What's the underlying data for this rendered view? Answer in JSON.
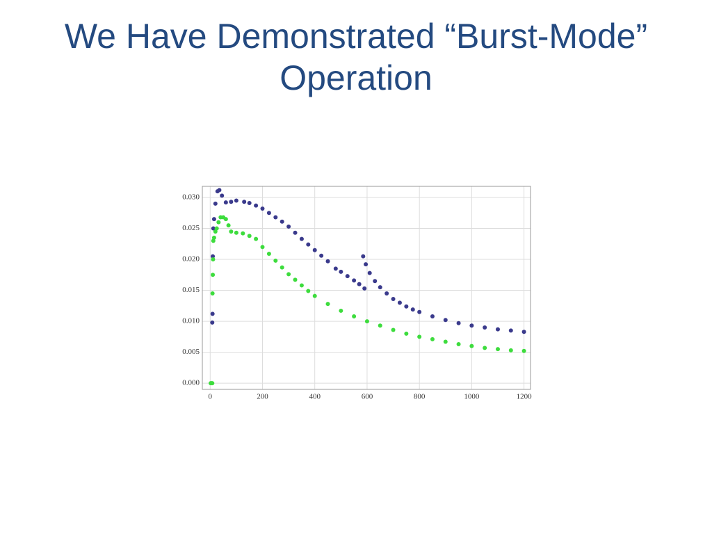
{
  "title": "We Have Demonstrated “Burst-Mode” Operation",
  "chart_data": {
    "type": "scatter",
    "xlim": [
      -30,
      1225
    ],
    "ylim": [
      -0.001,
      0.0318
    ],
    "xticks": [
      0,
      200,
      400,
      600,
      800,
      1000,
      1200
    ],
    "yticks": [
      {
        "value": 0,
        "label": "0.000"
      },
      0.005,
      {
        "value": 0.01,
        "label": "0.010"
      },
      0.015,
      {
        "value": 0.02,
        "label": "0.020"
      },
      0.025,
      {
        "value": 0.03,
        "label": "0.030"
      }
    ],
    "grid": true,
    "series": [
      {
        "color": "#3a3a8c",
        "x": [
          8,
          9,
          10,
          12,
          15,
          20,
          28,
          35,
          45,
          60,
          80,
          100,
          130,
          150,
          175,
          200,
          225,
          250,
          275,
          300,
          325,
          350,
          375,
          400,
          425,
          450,
          480,
          500,
          525,
          550,
          570,
          590,
          585,
          595,
          610,
          630,
          650,
          675,
          700,
          725,
          750,
          775,
          800,
          850,
          900,
          950,
          1000,
          1050,
          1100,
          1150,
          1200
        ],
        "values": [
          0.0098,
          0.0112,
          0.0205,
          0.025,
          0.0265,
          0.029,
          0.031,
          0.0312,
          0.0303,
          0.0292,
          0.0293,
          0.0295,
          0.0293,
          0.0291,
          0.0287,
          0.0282,
          0.0275,
          0.0268,
          0.0261,
          0.0253,
          0.0243,
          0.0233,
          0.0224,
          0.0215,
          0.0206,
          0.0197,
          0.0185,
          0.018,
          0.0173,
          0.0166,
          0.016,
          0.0153,
          0.0205,
          0.0192,
          0.0178,
          0.0165,
          0.0155,
          0.0145,
          0.0136,
          0.013,
          0.0124,
          0.0119,
          0.0115,
          0.0108,
          0.0102,
          0.0097,
          0.0093,
          0.009,
          0.0087,
          0.0085,
          0.0083
        ]
      },
      {
        "color": "#3ddc3d",
        "x": [
          2,
          5,
          8,
          9,
          10,
          11,
          12,
          15,
          20,
          25,
          32,
          40,
          50,
          60,
          70,
          80,
          100,
          125,
          150,
          175,
          200,
          225,
          250,
          275,
          300,
          325,
          350,
          375,
          400,
          450,
          500,
          550,
          600,
          650,
          700,
          750,
          800,
          850,
          900,
          950,
          1000,
          1050,
          1100,
          1150,
          1200
        ],
        "values": [
          0,
          0,
          0,
          0.0145,
          0.0175,
          0.02,
          0.023,
          0.0235,
          0.0245,
          0.025,
          0.026,
          0.0268,
          0.0268,
          0.0265,
          0.0255,
          0.0245,
          0.0243,
          0.0242,
          0.0238,
          0.0233,
          0.022,
          0.0209,
          0.0198,
          0.0187,
          0.0176,
          0.0167,
          0.0158,
          0.0149,
          0.0141,
          0.0128,
          0.0117,
          0.0108,
          0.01,
          0.0093,
          0.0086,
          0.008,
          0.0075,
          0.0071,
          0.0067,
          0.0063,
          0.006,
          0.0057,
          0.0055,
          0.0053,
          0.0052
        ]
      }
    ]
  }
}
